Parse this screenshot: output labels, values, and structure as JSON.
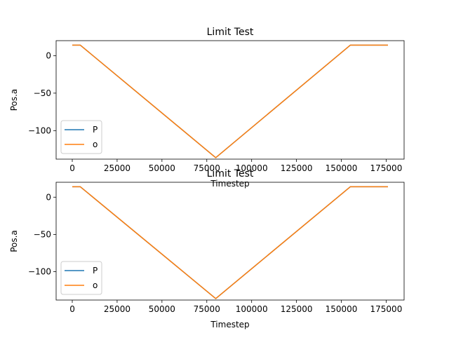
{
  "chart_data": [
    {
      "type": "line",
      "title": "Limit Test",
      "xlabel": "Timestep",
      "ylabel": "Pos.a",
      "xlim": [
        -9000,
        185000
      ],
      "ylim": [
        -138,
        20
      ],
      "xticks": [
        0,
        25000,
        50000,
        75000,
        100000,
        125000,
        150000,
        175000
      ],
      "xtick_labels": [
        "0",
        "25000",
        "50000",
        "75000",
        "100000",
        "125000",
        "150000",
        "175000"
      ],
      "yticks": [
        0,
        -50,
        -100
      ],
      "ytick_labels": [
        "0",
        "−50",
        "−100"
      ],
      "grid": false,
      "legend_position": "lower-left",
      "series": [
        {
          "name": "P",
          "color": "#1f77b4",
          "x": [
            0,
            4500,
            80000,
            155000,
            176000
          ],
          "y": [
            14,
            14,
            -136,
            14,
            14
          ]
        },
        {
          "name": "o",
          "color": "#ff7f0e",
          "x": [
            0,
            4500,
            80000,
            155000,
            176000
          ],
          "y": [
            14,
            14,
            -136,
            14,
            14
          ]
        }
      ]
    },
    {
      "type": "line",
      "title": "Limit Test",
      "xlabel": "Timestep",
      "ylabel": "Pos.a",
      "xlim": [
        -9000,
        185000
      ],
      "ylim": [
        -138,
        20
      ],
      "xticks": [
        0,
        25000,
        50000,
        75000,
        100000,
        125000,
        150000,
        175000
      ],
      "xtick_labels": [
        "0",
        "25000",
        "50000",
        "75000",
        "100000",
        "125000",
        "150000",
        "175000"
      ],
      "yticks": [
        0,
        -50,
        -100
      ],
      "ytick_labels": [
        "0",
        "−50",
        "−100"
      ],
      "grid": false,
      "legend_position": "lower-left",
      "series": [
        {
          "name": "P",
          "color": "#1f77b4",
          "x": [
            0,
            4500,
            80000,
            155000,
            176000
          ],
          "y": [
            14,
            14,
            -136,
            14,
            14
          ]
        },
        {
          "name": "o",
          "color": "#ff7f0e",
          "x": [
            0,
            4500,
            80000,
            155000,
            176000
          ],
          "y": [
            14,
            14,
            -136,
            14,
            14
          ]
        }
      ]
    }
  ]
}
